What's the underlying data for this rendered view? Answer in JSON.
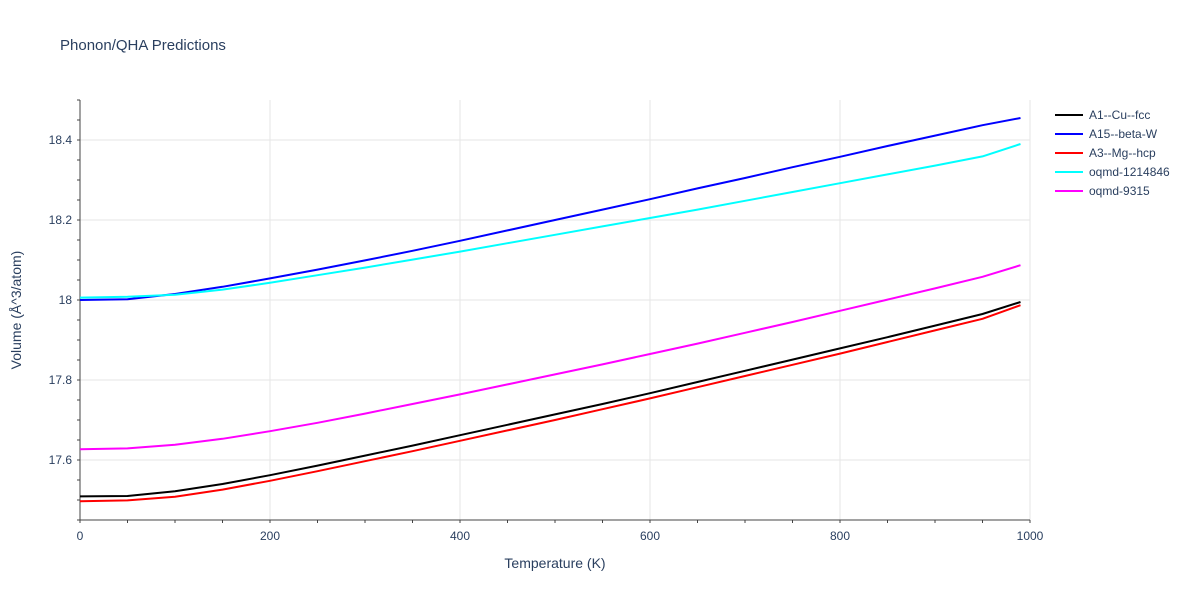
{
  "chart_data": {
    "type": "line",
    "title": "Phonon/QHA Predictions",
    "xlabel": "Temperature (K)",
    "ylabel": "Volume (Å^3/atom)",
    "xlim": [
      0,
      1000
    ],
    "ylim": [
      17.45,
      18.5
    ],
    "xticks": [
      0,
      200,
      400,
      600,
      800,
      1000
    ],
    "xtick_labels": [
      "0",
      "200",
      "400",
      "600",
      "800",
      "1000"
    ],
    "yticks": [
      17.6,
      17.8,
      18.0,
      18.2,
      18.4
    ],
    "ytick_labels": [
      "17.6",
      "17.8",
      "18",
      "18.2",
      "18.4"
    ],
    "grid": true,
    "legend_position": "right",
    "series": [
      {
        "name": "A1--Cu--fcc",
        "color": "#000000",
        "x": [
          0,
          50,
          100,
          150,
          200,
          250,
          300,
          350,
          400,
          450,
          500,
          550,
          600,
          650,
          700,
          750,
          800,
          850,
          900,
          950,
          990
        ],
        "y": [
          17.509,
          17.51,
          17.522,
          17.54,
          17.562,
          17.586,
          17.611,
          17.636,
          17.662,
          17.688,
          17.714,
          17.74,
          17.767,
          17.795,
          17.823,
          17.851,
          17.879,
          17.907,
          17.936,
          17.965,
          17.995
        ]
      },
      {
        "name": "A15--beta-W",
        "color": "#0000ff",
        "x": [
          0,
          50,
          100,
          150,
          200,
          250,
          300,
          350,
          400,
          450,
          500,
          550,
          600,
          650,
          700,
          750,
          800,
          850,
          900,
          950,
          990
        ],
        "y": [
          18.0,
          18.002,
          18.015,
          18.033,
          18.054,
          18.076,
          18.099,
          18.123,
          18.148,
          18.174,
          18.2,
          18.226,
          18.252,
          18.279,
          18.305,
          18.332,
          18.358,
          18.385,
          18.411,
          18.437,
          18.455
        ]
      },
      {
        "name": "A3--Mg--hcp",
        "color": "#ff0000",
        "x": [
          0,
          50,
          100,
          150,
          200,
          250,
          300,
          350,
          400,
          450,
          500,
          550,
          600,
          650,
          700,
          750,
          800,
          850,
          900,
          950,
          990
        ],
        "y": [
          17.497,
          17.499,
          17.508,
          17.526,
          17.548,
          17.572,
          17.597,
          17.622,
          17.648,
          17.674,
          17.7,
          17.727,
          17.754,
          17.782,
          17.81,
          17.838,
          17.866,
          17.895,
          17.924,
          17.953,
          17.987
        ]
      },
      {
        "name": "oqmd-1214846",
        "color": "#00ffff",
        "x": [
          0,
          50,
          100,
          150,
          200,
          250,
          300,
          350,
          400,
          450,
          500,
          550,
          600,
          650,
          700,
          750,
          800,
          850,
          900,
          950,
          990
        ],
        "y": [
          18.006,
          18.008,
          18.013,
          18.026,
          18.043,
          18.062,
          18.081,
          18.101,
          18.121,
          18.142,
          18.163,
          18.184,
          18.205,
          18.226,
          18.248,
          18.27,
          18.292,
          18.314,
          18.336,
          18.359,
          18.39
        ]
      },
      {
        "name": "oqmd-9315",
        "color": "#ff00ff",
        "x": [
          0,
          50,
          100,
          150,
          200,
          250,
          300,
          350,
          400,
          450,
          500,
          550,
          600,
          650,
          700,
          750,
          800,
          850,
          900,
          950,
          990
        ],
        "y": [
          17.627,
          17.629,
          17.638,
          17.653,
          17.672,
          17.693,
          17.716,
          17.74,
          17.764,
          17.789,
          17.814,
          17.839,
          17.865,
          17.891,
          17.918,
          17.945,
          17.973,
          18.001,
          18.029,
          18.058,
          18.087
        ]
      }
    ]
  }
}
